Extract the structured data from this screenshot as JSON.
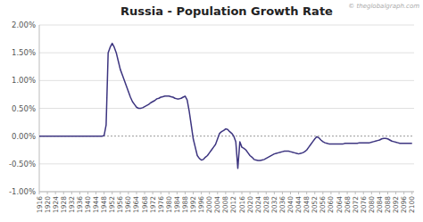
{
  "chart_data": {
    "type": "line",
    "title": "Russia - Population Growth Rate",
    "annotations": [
      "© theglobalgraph.com"
    ],
    "color": "#3d3580",
    "grid": true,
    "xlim": [
      1916,
      2101
    ],
    "xticks": [
      1916,
      1920,
      1924,
      1928,
      1932,
      1936,
      1940,
      1944,
      1948,
      1952,
      1956,
      1960,
      1964,
      1968,
      1972,
      1976,
      1980,
      1984,
      1988,
      1992,
      1996,
      2000,
      2004,
      2008,
      2012,
      2016,
      2020,
      2024,
      2028,
      2032,
      2036,
      2040,
      2044,
      2048,
      2052,
      2056,
      2060,
      2064,
      2068,
      2072,
      2076,
      2080,
      2084,
      2088,
      2092,
      2096,
      2100
    ],
    "ylim": [
      -1.0,
      2.0
    ],
    "yticks": [
      {
        "value": -1.0,
        "label": "-1.00%"
      },
      {
        "value": -0.5,
        "label": "-0.50%"
      },
      {
        "value": 0.0,
        "label": "0.00%"
      },
      {
        "value": 0.5,
        "label": "0.50%"
      },
      {
        "value": 1.0,
        "label": "1.00%"
      },
      {
        "value": 1.5,
        "label": "1.50%"
      },
      {
        "value": 2.0,
        "label": "2.00%"
      }
    ],
    "x": [
      1916,
      1917,
      1918,
      1919,
      1920,
      1921,
      1922,
      1923,
      1924,
      1925,
      1926,
      1927,
      1928,
      1929,
      1930,
      1931,
      1932,
      1933,
      1934,
      1935,
      1936,
      1937,
      1938,
      1939,
      1940,
      1941,
      1942,
      1943,
      1944,
      1945,
      1946,
      1947,
      1948,
      1949,
      1950,
      1951,
      1952,
      1953,
      1954,
      1955,
      1956,
      1957,
      1958,
      1959,
      1960,
      1961,
      1962,
      1963,
      1964,
      1965,
      1966,
      1967,
      1968,
      1969,
      1970,
      1971,
      1972,
      1973,
      1974,
      1975,
      1976,
      1977,
      1978,
      1979,
      1980,
      1981,
      1982,
      1983,
      1984,
      1985,
      1986,
      1987,
      1988,
      1989,
      1990,
      1991,
      1992,
      1993,
      1994,
      1995,
      1996,
      1997,
      1998,
      1999,
      2000,
      2001,
      2002,
      2003,
      2004,
      2005,
      2006,
      2007,
      2008,
      2009,
      2010,
      2011,
      2012,
      2013,
      2014,
      2015,
      2016,
      2017,
      2018,
      2019,
      2020,
      2021,
      2022,
      2023,
      2024,
      2025,
      2026,
      2027,
      2028,
      2029,
      2030,
      2031,
      2032,
      2033,
      2034,
      2035,
      2036,
      2037,
      2038,
      2039,
      2040,
      2041,
      2042,
      2043,
      2044,
      2045,
      2046,
      2047,
      2048,
      2049,
      2050,
      2051,
      2052,
      2053,
      2054,
      2055,
      2056,
      2057,
      2058,
      2059,
      2060,
      2061,
      2062,
      2063,
      2064,
      2065,
      2066,
      2067,
      2068,
      2069,
      2070,
      2071,
      2072,
      2073,
      2074,
      2075,
      2076,
      2077,
      2078,
      2079,
      2080,
      2081,
      2082,
      2083,
      2084,
      2085,
      2086,
      2087,
      2088,
      2089,
      2090,
      2091,
      2092,
      2093,
      2094,
      2095,
      2096,
      2097,
      2098,
      2099,
      2100
    ],
    "values": [
      0.0,
      0.0,
      0.0,
      0.0,
      0.0,
      0.0,
      0.0,
      0.0,
      0.0,
      0.0,
      0.0,
      0.0,
      0.0,
      0.0,
      0.0,
      0.0,
      0.0,
      0.0,
      0.0,
      0.0,
      0.0,
      0.0,
      0.0,
      0.0,
      0.0,
      0.0,
      0.0,
      0.0,
      0.0,
      0.0,
      0.0,
      0.0,
      0.01,
      0.2,
      1.5,
      1.6,
      1.67,
      1.6,
      1.5,
      1.35,
      1.2,
      1.1,
      1.0,
      0.9,
      0.8,
      0.7,
      0.62,
      0.57,
      0.52,
      0.5,
      0.5,
      0.51,
      0.53,
      0.55,
      0.57,
      0.6,
      0.62,
      0.64,
      0.67,
      0.68,
      0.7,
      0.71,
      0.72,
      0.72,
      0.72,
      0.71,
      0.7,
      0.68,
      0.67,
      0.67,
      0.68,
      0.7,
      0.72,
      0.65,
      0.45,
      0.2,
      -0.05,
      -0.2,
      -0.35,
      -0.4,
      -0.43,
      -0.42,
      -0.38,
      -0.35,
      -0.3,
      -0.25,
      -0.2,
      -0.15,
      -0.05,
      0.05,
      0.08,
      0.1,
      0.13,
      0.12,
      0.08,
      0.05,
      0.0,
      -0.1,
      -0.58,
      -0.1,
      -0.2,
      -0.22,
      -0.25,
      -0.3,
      -0.35,
      -0.38,
      -0.42,
      -0.43,
      -0.44,
      -0.44,
      -0.43,
      -0.42,
      -0.4,
      -0.38,
      -0.36,
      -0.34,
      -0.32,
      -0.31,
      -0.3,
      -0.29,
      -0.28,
      -0.27,
      -0.27,
      -0.27,
      -0.28,
      -0.29,
      -0.3,
      -0.31,
      -0.32,
      -0.31,
      -0.3,
      -0.28,
      -0.25,
      -0.2,
      -0.15,
      -0.1,
      -0.05,
      -0.01,
      -0.03,
      -0.07,
      -0.1,
      -0.12,
      -0.13,
      -0.14,
      -0.14,
      -0.14,
      -0.14,
      -0.14,
      -0.14,
      -0.14,
      -0.14,
      -0.13,
      -0.13,
      -0.13,
      -0.13,
      -0.13,
      -0.13,
      -0.13,
      -0.12,
      -0.12,
      -0.12,
      -0.12,
      -0.12,
      -0.12,
      -0.11,
      -0.1,
      -0.09,
      -0.08,
      -0.07,
      -0.05,
      -0.04,
      -0.04,
      -0.05,
      -0.07,
      -0.09,
      -0.1,
      -0.11,
      -0.12,
      -0.13,
      -0.13,
      -0.13,
      -0.13,
      -0.13,
      -0.13,
      -0.13
    ]
  }
}
